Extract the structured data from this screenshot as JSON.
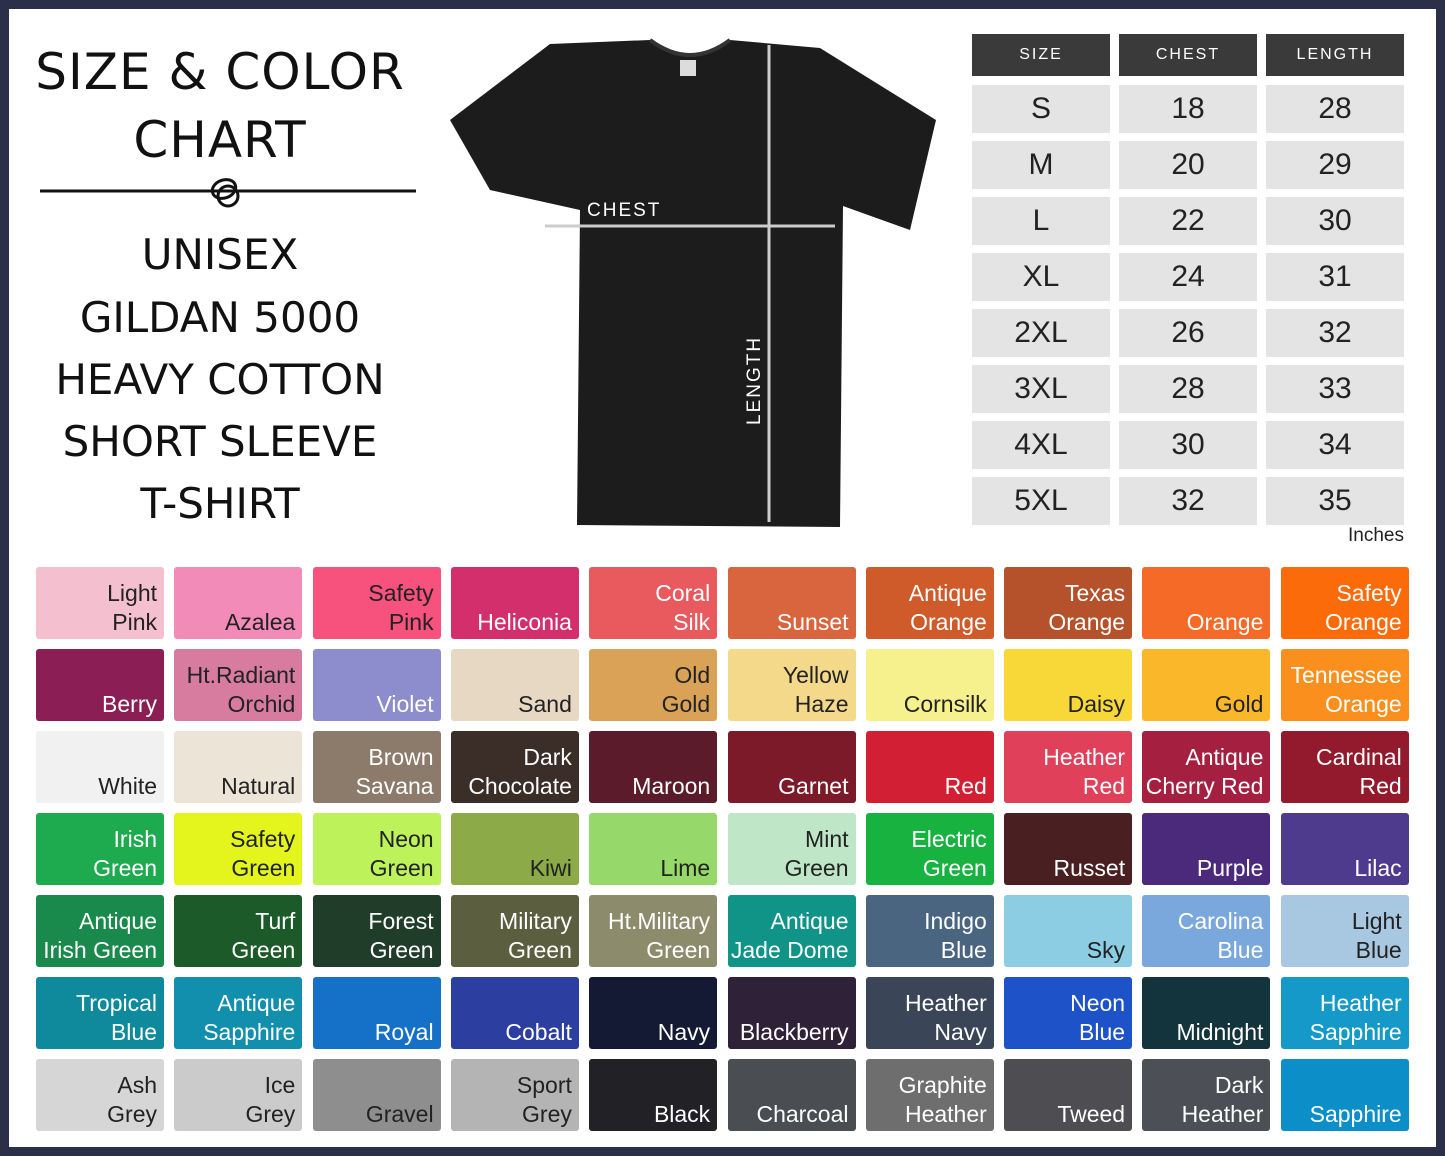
{
  "title": [
    "SIZE & COLOR",
    "CHART"
  ],
  "subtitle": [
    "UNISEX",
    "GILDAN 5000",
    "HEAVY COTTON",
    "SHORT SLEEVE",
    "T-SHIRT"
  ],
  "shirt": {
    "chest_label": "CHEST",
    "length_label": "LENGTH",
    "color": "#1c1c1c"
  },
  "size_table": {
    "headers": [
      "SIZE",
      "CHEST",
      "LENGTH"
    ],
    "rows": [
      [
        "S",
        "18",
        "28"
      ],
      [
        "M",
        "20",
        "29"
      ],
      [
        "L",
        "22",
        "30"
      ],
      [
        "XL",
        "24",
        "31"
      ],
      [
        "2XL",
        "26",
        "32"
      ],
      [
        "3XL",
        "28",
        "33"
      ],
      [
        "4XL",
        "30",
        "34"
      ],
      [
        "5XL",
        "32",
        "35"
      ]
    ],
    "unit": "Inches"
  },
  "colors": [
    {
      "lines": [
        "Light",
        "Pink"
      ],
      "hex": "#f4c0d0",
      "text": "#222"
    },
    {
      "lines": [
        "Azalea"
      ],
      "hex": "#f28bb8",
      "text": "#222"
    },
    {
      "lines": [
        "Safety",
        "Pink"
      ],
      "hex": "#f7517e",
      "text": "#222"
    },
    {
      "lines": [
        "Heliconia"
      ],
      "hex": "#d42f6d",
      "text": "#fff"
    },
    {
      "lines": [
        "Coral",
        "Silk"
      ],
      "hex": "#e85a5e",
      "text": "#fff"
    },
    {
      "lines": [
        "Sunset"
      ],
      "hex": "#d9653f",
      "text": "#fff"
    },
    {
      "lines": [
        "Antique",
        "Orange"
      ],
      "hex": "#cf5a2a",
      "text": "#fff"
    },
    {
      "lines": [
        "Texas",
        "Orange"
      ],
      "hex": "#b5522b",
      "text": "#fff"
    },
    {
      "lines": [
        "Orange"
      ],
      "hex": "#f56a26",
      "text": "#fff"
    },
    {
      "lines": [
        "Safety",
        "Orange"
      ],
      "hex": "#fb6b0a",
      "text": "#fff"
    },
    {
      "lines": [
        "Berry"
      ],
      "hex": "#8a1e55",
      "text": "#fff"
    },
    {
      "lines": [
        "Ht.Radiant",
        "Orchid"
      ],
      "hex": "#d77c9e",
      "text": "#222"
    },
    {
      "lines": [
        "Violet"
      ],
      "hex": "#8d8ccd",
      "text": "#fff"
    },
    {
      "lines": [
        "Sand"
      ],
      "hex": "#e6d8c2",
      "text": "#222"
    },
    {
      "lines": [
        "Old",
        "Gold"
      ],
      "hex": "#d9a257",
      "text": "#222"
    },
    {
      "lines": [
        "Yellow",
        "Haze"
      ],
      "hex": "#f5d98a",
      "text": "#222"
    },
    {
      "lines": [
        "Cornsilk"
      ],
      "hex": "#f6f08d",
      "text": "#222"
    },
    {
      "lines": [
        "Daisy"
      ],
      "hex": "#f8d839",
      "text": "#222"
    },
    {
      "lines": [
        "Gold"
      ],
      "hex": "#fbb72a",
      "text": "#222"
    },
    {
      "lines": [
        "Tennessee",
        "Orange"
      ],
      "hex": "#fb8f1e",
      "text": "#fff"
    },
    {
      "lines": [
        "White"
      ],
      "hex": "#f1f1f1",
      "text": "#222"
    },
    {
      "lines": [
        "Natural"
      ],
      "hex": "#ece4d6",
      "text": "#222"
    },
    {
      "lines": [
        "Brown",
        "Savana"
      ],
      "hex": "#8c7b6a",
      "text": "#fff"
    },
    {
      "lines": [
        "Dark",
        "Chocolate"
      ],
      "hex": "#3b2e28",
      "text": "#fff"
    },
    {
      "lines": [
        "Maroon"
      ],
      "hex": "#5c1b2a",
      "text": "#fff"
    },
    {
      "lines": [
        "Garnet"
      ],
      "hex": "#7c1a2a",
      "text": "#fff"
    },
    {
      "lines": [
        "Red"
      ],
      "hex": "#d31f33",
      "text": "#fff"
    },
    {
      "lines": [
        "Heather",
        "Red"
      ],
      "hex": "#e0405a",
      "text": "#fff"
    },
    {
      "lines": [
        "Antique",
        "Cherry Red"
      ],
      "hex": "#a52040",
      "text": "#fff"
    },
    {
      "lines": [
        "Cardinal",
        "Red"
      ],
      "hex": "#921a2c",
      "text": "#fff"
    },
    {
      "lines": [
        "Irish",
        "Green"
      ],
      "hex": "#1eaa4f",
      "text": "#fff"
    },
    {
      "lines": [
        "Safety",
        "Green"
      ],
      "hex": "#e3f51d",
      "text": "#222"
    },
    {
      "lines": [
        "Neon",
        "Green"
      ],
      "hex": "#bdf25a",
      "text": "#222"
    },
    {
      "lines": [
        "Kiwi"
      ],
      "hex": "#8caa48",
      "text": "#222"
    },
    {
      "lines": [
        "Lime"
      ],
      "hex": "#96d86a",
      "text": "#222"
    },
    {
      "lines": [
        "Mint",
        "Green"
      ],
      "hex": "#bfe6c7",
      "text": "#222"
    },
    {
      "lines": [
        "Electric",
        "Green"
      ],
      "hex": "#17b23f",
      "text": "#fff"
    },
    {
      "lines": [
        "Russet"
      ],
      "hex": "#4a1f22",
      "text": "#fff"
    },
    {
      "lines": [
        "Purple"
      ],
      "hex": "#4b2a7b",
      "text": "#fff"
    },
    {
      "lines": [
        "Lilac"
      ],
      "hex": "#4f3b8e",
      "text": "#fff"
    },
    {
      "lines": [
        "Antique",
        "Irish Green"
      ],
      "hex": "#1a8a4c",
      "text": "#fff"
    },
    {
      "lines": [
        "Turf",
        "Green"
      ],
      "hex": "#1d5a2a",
      "text": "#fff"
    },
    {
      "lines": [
        "Forest",
        "Green"
      ],
      "hex": "#203d2a",
      "text": "#fff"
    },
    {
      "lines": [
        "Military",
        "Green"
      ],
      "hex": "#5c5e40",
      "text": "#fff"
    },
    {
      "lines": [
        "Ht.Military",
        "Green"
      ],
      "hex": "#8c8c6c",
      "text": "#fff"
    },
    {
      "lines": [
        "Antique",
        "Jade Dome"
      ],
      "hex": "#109488",
      "text": "#fff"
    },
    {
      "lines": [
        "Indigo",
        "Blue"
      ],
      "hex": "#4a6580",
      "text": "#fff"
    },
    {
      "lines": [
        "Sky"
      ],
      "hex": "#8ccde4",
      "text": "#222"
    },
    {
      "lines": [
        "Carolina",
        "Blue"
      ],
      "hex": "#7aa8dc",
      "text": "#fff"
    },
    {
      "lines": [
        "Light",
        "Blue"
      ],
      "hex": "#a8c7e0",
      "text": "#222"
    },
    {
      "lines": [
        "Tropical",
        "Blue"
      ],
      "hex": "#0f8a9c",
      "text": "#fff"
    },
    {
      "lines": [
        "Antique",
        "Sapphire"
      ],
      "hex": "#138fae",
      "text": "#fff"
    },
    {
      "lines": [
        "Royal"
      ],
      "hex": "#1571c8",
      "text": "#fff"
    },
    {
      "lines": [
        "Cobalt"
      ],
      "hex": "#2d3ea1",
      "text": "#fff"
    },
    {
      "lines": [
        "Navy"
      ],
      "hex": "#151a34",
      "text": "#fff"
    },
    {
      "lines": [
        "Blackberry"
      ],
      "hex": "#2e2138",
      "text": "#fff"
    },
    {
      "lines": [
        "Heather",
        "Navy"
      ],
      "hex": "#3a4658",
      "text": "#fff"
    },
    {
      "lines": [
        "Neon",
        "Blue"
      ],
      "hex": "#1e52c8",
      "text": "#fff"
    },
    {
      "lines": [
        "Midnight"
      ],
      "hex": "#13343c",
      "text": "#fff"
    },
    {
      "lines": [
        "Heather",
        "Sapphire"
      ],
      "hex": "#1599c8",
      "text": "#fff"
    },
    {
      "lines": [
        "Ash",
        "Grey"
      ],
      "hex": "#d6d6d6",
      "text": "#222"
    },
    {
      "lines": [
        "Ice",
        "Grey"
      ],
      "hex": "#cbcbcb",
      "text": "#222"
    },
    {
      "lines": [
        "Gravel"
      ],
      "hex": "#8e8e8e",
      "text": "#222"
    },
    {
      "lines": [
        "Sport",
        "Grey"
      ],
      "hex": "#b4b4b4",
      "text": "#222"
    },
    {
      "lines": [
        "Black"
      ],
      "hex": "#222226",
      "text": "#fff"
    },
    {
      "lines": [
        "Charcoal"
      ],
      "hex": "#4a4d52",
      "text": "#fff"
    },
    {
      "lines": [
        "Graphite",
        "Heather"
      ],
      "hex": "#6e6e6e",
      "text": "#fff"
    },
    {
      "lines": [
        "Tweed"
      ],
      "hex": "#4d4d52",
      "text": "#fff"
    },
    {
      "lines": [
        "Dark",
        "Heather"
      ],
      "hex": "#4c5056",
      "text": "#fff"
    },
    {
      "lines": [
        "Sapphire"
      ],
      "hex": "#0c8fc8",
      "text": "#fff"
    }
  ]
}
